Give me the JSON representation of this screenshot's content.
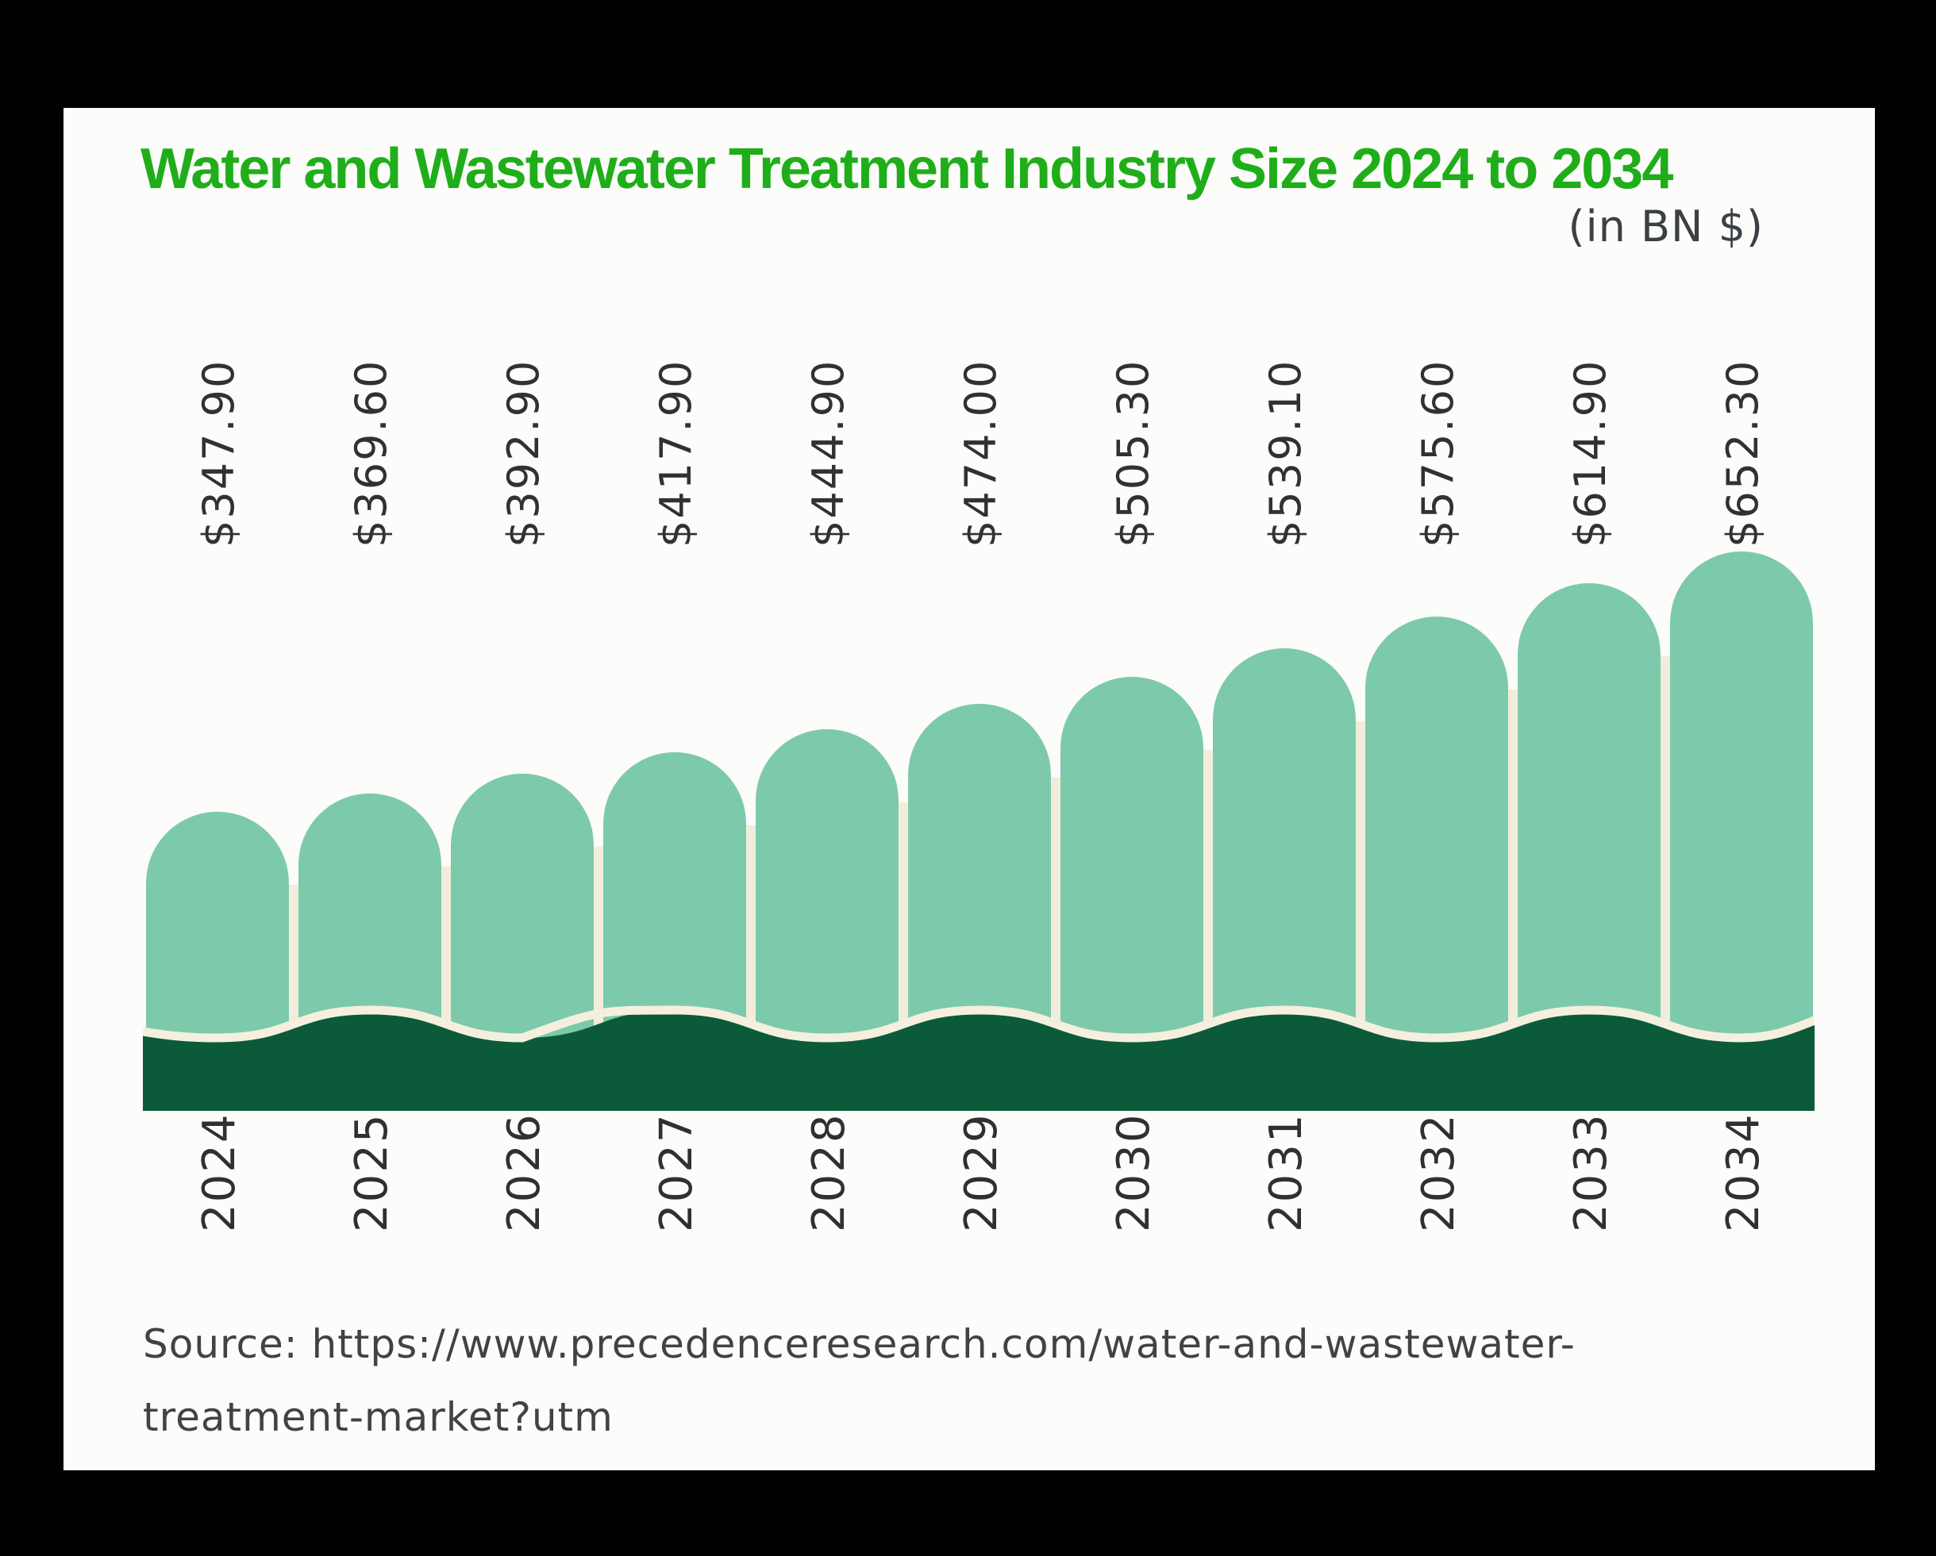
{
  "window": {
    "background": "#000000",
    "card_background": "#FCFCFA"
  },
  "header": {
    "title": "Water and Wastewater Treatment Industry Size 2024 to 2034",
    "subtitle": "(in BN $)",
    "title_color": "#1FAE1A",
    "subtitle_color": "#3B4045"
  },
  "source": {
    "line1": "Source: https://www.precedenceresearch.com/water-and-wastewater-",
    "line2": "treatment-market?utm"
  },
  "chart_data": {
    "type": "bar",
    "title": "Water and Wastewater Treatment Industry Size 2024 to 2034",
    "subtitle": "(in BN $)",
    "unit": "USD billions",
    "xlabel": "",
    "ylabel": "",
    "categories": [
      "2024",
      "2025",
      "2026",
      "2027",
      "2028",
      "2029",
      "2030",
      "2031",
      "2032",
      "2033",
      "2034"
    ],
    "values": [
      347.9,
      369.6,
      392.9,
      417.9,
      444.9,
      474.0,
      505.3,
      539.1,
      575.6,
      614.9,
      652.3
    ],
    "value_labels": [
      "$347.90",
      "$369.60",
      "$392.90",
      "$417.90",
      "$444.90",
      "$474.00",
      "$505.30",
      "$539.10",
      "$575.60",
      "$614.90",
      "$652.30"
    ],
    "ylim": [
      0,
      700
    ],
    "grid": false,
    "legend": "none",
    "orientation": "vertical",
    "label_rotation_deg": -90,
    "colors": {
      "bar": "#7DC9AC",
      "band": "#0B5B3A",
      "band_stroke": "#F4F0DD",
      "divider": "#F2EDDA",
      "value_label": "#2F3234",
      "year_label": "#2E3133"
    }
  }
}
